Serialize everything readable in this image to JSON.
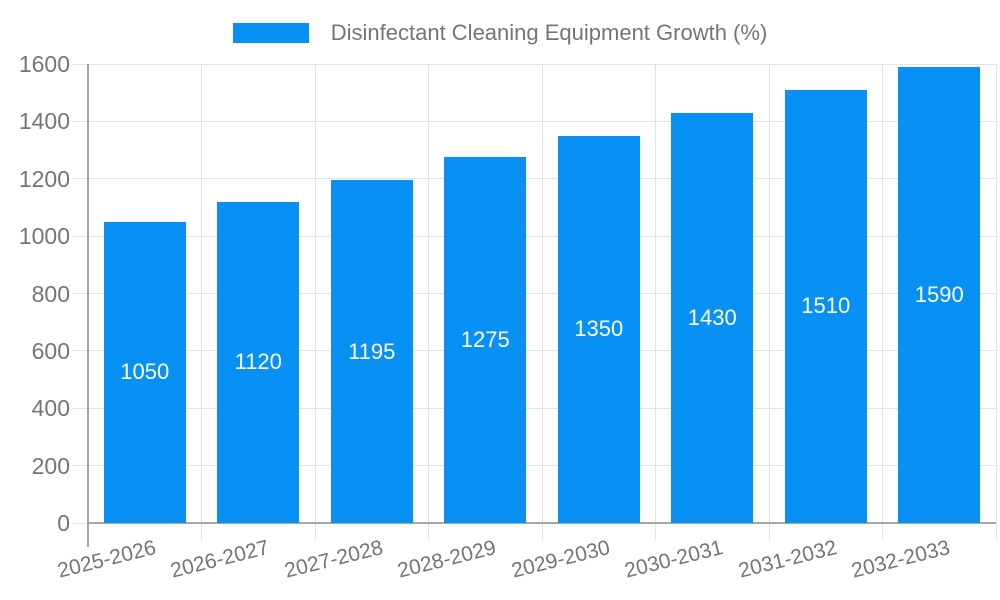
{
  "legend": {
    "label": "Disinfectant Cleaning Equipment Growth (%)"
  },
  "chart_data": {
    "type": "bar",
    "title": "Disinfectant Cleaning Equipment Growth (%)",
    "categories": [
      "2025-2026",
      "2026-2027",
      "2027-2028",
      "2028-2029",
      "2029-2030",
      "2030-2031",
      "2031-2032",
      "2032-2033"
    ],
    "values": [
      1050,
      1120,
      1195,
      1275,
      1350,
      1430,
      1510,
      1590
    ],
    "xlabel": "",
    "ylabel": "",
    "ylim": [
      0,
      1600
    ],
    "yticks": [
      0,
      200,
      400,
      600,
      800,
      1000,
      1200,
      1400,
      1600
    ],
    "grid": true,
    "legend_position": "top-center",
    "colors": {
      "bar": "#0890f5",
      "value_label": "#ffffff",
      "axis_text": "#757575",
      "gridline": "#e3e3e3",
      "axis_line": "#a6a6a6",
      "background": "#ffffff"
    }
  }
}
